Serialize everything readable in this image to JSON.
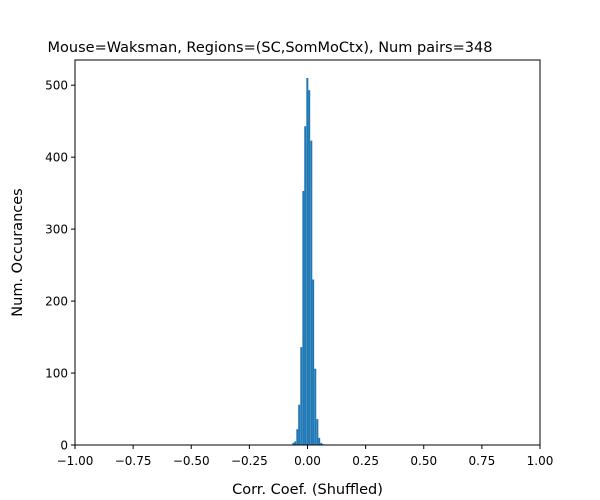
{
  "chart_data": {
    "type": "bar",
    "title": "Mouse=Waksman, Regions=(SC,SomMoCtx), Num pairs=348",
    "xlabel": "Corr. Coef. (Shuffled)",
    "ylabel": "Num. Occurances",
    "xlim": [
      -1.0,
      1.0
    ],
    "ylim": [
      0,
      535
    ],
    "xticks": [
      -1.0,
      -0.75,
      -0.5,
      -0.25,
      0.0,
      0.25,
      0.5,
      0.75,
      1.0
    ],
    "xtick_labels": [
      "−1.00",
      "−0.75",
      "−0.50",
      "−0.25",
      "0.00",
      "0.25",
      "0.50",
      "0.75",
      "1.00"
    ],
    "yticks": [
      0,
      100,
      200,
      300,
      400,
      500
    ],
    "ytick_labels": [
      "0",
      "100",
      "200",
      "300",
      "400",
      "500"
    ],
    "bar_color": "#1f77b4",
    "grid": false,
    "bins": {
      "x_left": [
        -0.065,
        -0.057,
        -0.048,
        -0.04,
        -0.031,
        -0.022,
        -0.014,
        -0.005,
        0.003,
        0.012,
        0.02,
        0.029,
        0.038,
        0.046,
        0.055,
        0.063
      ],
      "width": 0.0086,
      "counts": [
        3,
        5,
        22,
        56,
        136,
        353,
        443,
        510,
        493,
        423,
        230,
        106,
        36,
        10,
        3,
        1
      ]
    }
  }
}
